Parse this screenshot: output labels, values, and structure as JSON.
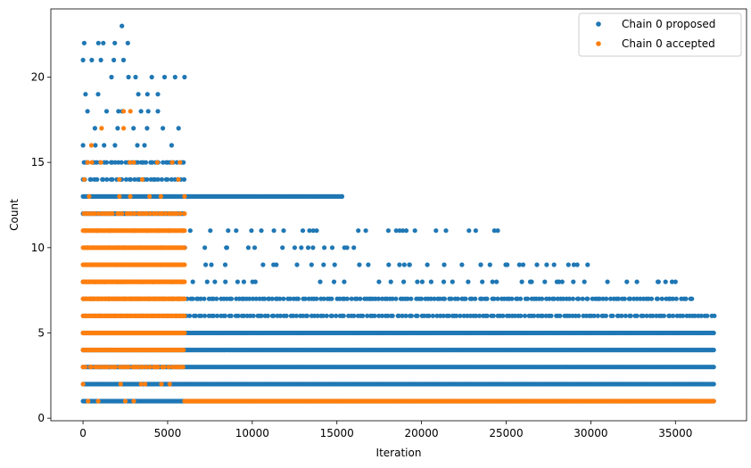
{
  "chart_data": {
    "type": "scatter",
    "title": "",
    "xlabel": "Iteration",
    "ylabel": "Count",
    "xlim": [
      -1900,
      39200
    ],
    "ylim": [
      -0.15,
      24.0
    ],
    "xticks": [
      0,
      5000,
      10000,
      15000,
      20000,
      25000,
      30000,
      35000
    ],
    "yticks": [
      0,
      5,
      10,
      15,
      20
    ],
    "x_max": 37300,
    "legend_position": "upper-right",
    "series": [
      {
        "name": "Chain 0 proposed",
        "color": "#1f77b4",
        "bands": [
          {
            "y": 1,
            "from": 0,
            "to": 37300,
            "density": "dense"
          },
          {
            "y": 2,
            "from": 0,
            "to": 37300,
            "density": "dense"
          },
          {
            "y": 3,
            "from": 0,
            "to": 37300,
            "density": "dense"
          },
          {
            "y": 4,
            "from": 0,
            "to": 37300,
            "density": "dense"
          },
          {
            "y": 5,
            "from": 0,
            "to": 37300,
            "density": "dense"
          },
          {
            "y": 6,
            "from": 0,
            "to": 37300,
            "density": "medium"
          },
          {
            "y": 7,
            "from": 0,
            "to": 36000,
            "density": "medium"
          },
          {
            "y": 8,
            "from": 0,
            "to": 35000,
            "density": "sparse"
          },
          {
            "y": 9,
            "from": 0,
            "to": 30000,
            "density": "sparse"
          },
          {
            "y": 10,
            "from": 0,
            "to": 16000,
            "density": "sparse"
          },
          {
            "y": 11,
            "from": 0,
            "to": 25000,
            "density": "sparse"
          },
          {
            "y": 12,
            "from": 0,
            "to": 6000,
            "density": "dense"
          },
          {
            "y": 13,
            "from": 0,
            "to": 15300,
            "density": "dense"
          },
          {
            "y": 14,
            "from": 0,
            "to": 6000,
            "density": "medium"
          },
          {
            "y": 15,
            "from": 0,
            "to": 6000,
            "density": "medium"
          },
          {
            "y": 16,
            "from": 0,
            "to": 6000,
            "density": "sparse"
          },
          {
            "y": 17,
            "from": 0,
            "to": 6000,
            "density": "sparse"
          },
          {
            "y": 18,
            "from": 0,
            "to": 6000,
            "density": "sparse"
          },
          {
            "y": 19,
            "from": 0,
            "to": 6000,
            "density": "sparse"
          },
          {
            "y": 20,
            "from": 0,
            "to": 6000,
            "density": "sparse"
          },
          {
            "y": 21,
            "from": 0,
            "to": 3000,
            "density": "sparse"
          },
          {
            "y": 22,
            "from": 0,
            "to": 3000,
            "density": "sparse"
          },
          {
            "y": 23,
            "from": 2200,
            "to": 2300,
            "density": "sparse"
          }
        ],
        "points": [
          [
            8500,
            10
          ],
          [
            9500,
            8
          ],
          [
            11000,
            7
          ],
          [
            13300,
            10
          ],
          [
            13500,
            9
          ],
          [
            13600,
            11
          ],
          [
            13800,
            11
          ],
          [
            15300,
            13
          ],
          [
            15600,
            10
          ],
          [
            16000,
            10
          ],
          [
            17000,
            7
          ],
          [
            18500,
            11
          ],
          [
            18700,
            9
          ],
          [
            18900,
            11
          ],
          [
            19100,
            11
          ],
          [
            19300,
            9
          ],
          [
            23500,
            9
          ],
          [
            24500,
            11
          ],
          [
            26000,
            9
          ],
          [
            29000,
            9
          ],
          [
            29200,
            9
          ],
          [
            34000,
            8
          ],
          [
            34800,
            8
          ],
          [
            35000,
            8
          ],
          [
            26500,
            8
          ],
          [
            28000,
            8
          ]
        ]
      },
      {
        "name": "Chain 0 accepted",
        "color": "#ff7f0e",
        "bands": [
          {
            "y": 1,
            "from": 6000,
            "to": 37300,
            "density": "solid"
          },
          {
            "y": 2,
            "from": 0,
            "to": 6000,
            "density": "sparse"
          },
          {
            "y": 3,
            "from": 0,
            "to": 6000,
            "density": "medium"
          },
          {
            "y": 4,
            "from": 0,
            "to": 6000,
            "density": "dense"
          },
          {
            "y": 5,
            "from": 0,
            "to": 6000,
            "density": "solid"
          },
          {
            "y": 6,
            "from": 0,
            "to": 6000,
            "density": "solid"
          },
          {
            "y": 7,
            "from": 0,
            "to": 6000,
            "density": "solid"
          },
          {
            "y": 8,
            "from": 0,
            "to": 6000,
            "density": "solid"
          },
          {
            "y": 9,
            "from": 0,
            "to": 6000,
            "density": "solid"
          },
          {
            "y": 10,
            "from": 0,
            "to": 6000,
            "density": "solid"
          },
          {
            "y": 11,
            "from": 0,
            "to": 6000,
            "density": "solid"
          },
          {
            "y": 12,
            "from": 0,
            "to": 6000,
            "density": "medium"
          },
          {
            "y": 13,
            "from": 0,
            "to": 6000,
            "density": "sparse"
          },
          {
            "y": 14,
            "from": 0,
            "to": 6000,
            "density": "sparse"
          },
          {
            "y": 15,
            "from": 0,
            "to": 6000,
            "density": "sparse"
          }
        ],
        "points": [
          [
            500,
            16
          ],
          [
            1100,
            17
          ],
          [
            2400,
            17
          ],
          [
            2400,
            18
          ],
          [
            2800,
            18
          ],
          [
            300,
            1
          ],
          [
            900,
            1
          ],
          [
            2500,
            1
          ],
          [
            3000,
            1
          ]
        ]
      }
    ]
  }
}
